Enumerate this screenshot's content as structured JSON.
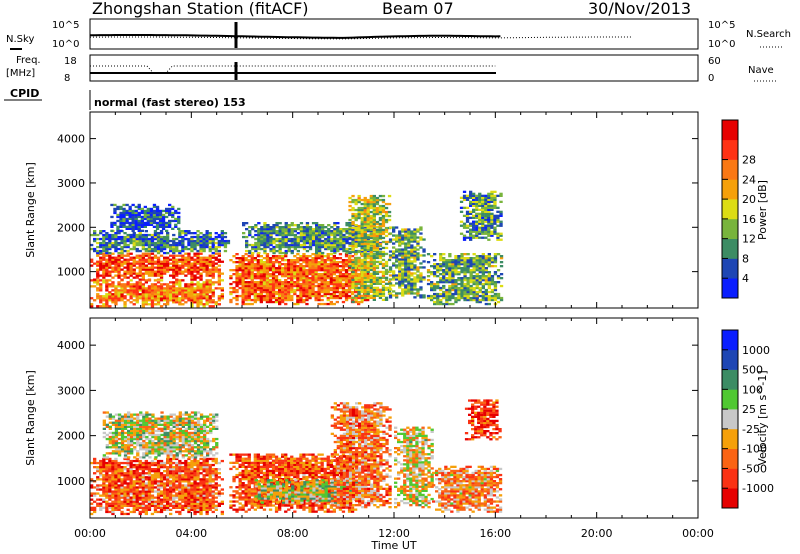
{
  "header": {
    "station": "Zhongshan Station (fitACF)",
    "beam": "Beam 07",
    "date": "30/Nov/2013"
  },
  "params": {
    "nsky_label": "N.Sky",
    "nsky_ticks": [
      "10^5",
      "10^0"
    ],
    "nsearch_label": "N.Search",
    "nsearch_ticks": [
      "10^5",
      "10^0"
    ],
    "freq_label_1": "Freq.",
    "freq_label_2": "[MHz]",
    "freq_ticks": [
      "18",
      "8"
    ],
    "nave_label": "Nave",
    "nave_ticks": [
      "60",
      "0"
    ],
    "cpid_label": "CPID",
    "cpid_text": "normal (fast stereo) 153"
  },
  "colors": {
    "power": [
      "#0a1eff",
      "#1e46b4",
      "#3c8c64",
      "#78b43c",
      "#dcdc14",
      "#f5a00a",
      "#fa7814",
      "#ff3214",
      "#e60000"
    ],
    "velocity": [
      "#e60000",
      "#fa3214",
      "#fa6414",
      "#f5a00a",
      "#c8c8c8",
      "#50c832",
      "#3c8c64",
      "#1e46b4",
      "#0a1eff"
    ]
  },
  "chart_data": [
    {
      "type": "heatmap",
      "name": "power",
      "x_unit": "hours UT",
      "x_range": [
        0,
        24
      ],
      "x_ticks": [
        "00:00",
        "04:00",
        "08:00",
        "12:00",
        "16:00",
        "20:00",
        "00:00"
      ],
      "ylabel": "Slant Range [km]",
      "y_range": [
        180,
        4600
      ],
      "y_ticks": [
        "1000",
        "2000",
        "3000",
        "4000"
      ],
      "colorbar": {
        "label": "Power [dB]",
        "range": [
          0,
          30
        ],
        "ticks": [
          "4",
          "8",
          "12",
          "16",
          "20",
          "24",
          "28"
        ]
      },
      "data_extent_hours": [
        0,
        16.2
      ],
      "regions": [
        {
          "t": [
            0.0,
            5.2
          ],
          "r": [
            200,
            800
          ],
          "level": 0.7
        },
        {
          "t": [
            0.0,
            5.2
          ],
          "r": [
            800,
            1400
          ],
          "level": 0.8
        },
        {
          "t": [
            0.0,
            5.5
          ],
          "r": [
            1400,
            1900
          ],
          "level": 0.25
        },
        {
          "t": [
            0.8,
            3.5
          ],
          "r": [
            1900,
            2500
          ],
          "level": 0.15
        },
        {
          "t": [
            5.5,
            11.0
          ],
          "r": [
            250,
            1400
          ],
          "level": 0.75
        },
        {
          "t": [
            6.0,
            11.5
          ],
          "r": [
            1400,
            2100
          ],
          "level": 0.3
        },
        {
          "t": [
            10.2,
            11.8
          ],
          "r": [
            300,
            2700
          ],
          "level": 0.45
        },
        {
          "t": [
            11.8,
            13.2
          ],
          "r": [
            400,
            2000
          ],
          "level": 0.35
        },
        {
          "t": [
            13.3,
            16.2
          ],
          "r": [
            250,
            1400
          ],
          "level": 0.35
        },
        {
          "t": [
            14.6,
            16.2
          ],
          "r": [
            1700,
            2800
          ],
          "level": 0.3
        }
      ]
    },
    {
      "type": "heatmap",
      "name": "velocity",
      "x_unit": "hours UT",
      "x_range": [
        0,
        24
      ],
      "x_ticks": [
        "00:00",
        "04:00",
        "08:00",
        "12:00",
        "16:00",
        "20:00",
        "00:00"
      ],
      "xlabel": "Time UT",
      "ylabel": "Slant Range [km]",
      "y_range": [
        180,
        4600
      ],
      "y_ticks": [
        "1000",
        "2000",
        "3000",
        "4000"
      ],
      "colorbar": {
        "label": "Velocity [m s^-1]",
        "range": [
          -1250,
          1250
        ],
        "ticks": [
          "1000",
          "500",
          "100",
          "25",
          "-25",
          "-100",
          "-500",
          "-1000"
        ]
      },
      "data_extent_hours": [
        0,
        16.2
      ],
      "regions": [
        {
          "t": [
            0.0,
            5.2
          ],
          "r": [
            250,
            1500
          ],
          "level": 0.25
        },
        {
          "t": [
            0.5,
            5.0
          ],
          "r": [
            1500,
            2500
          ],
          "level": 0.5
        },
        {
          "t": [
            5.5,
            10.5
          ],
          "r": [
            300,
            1600
          ],
          "level": 0.22
        },
        {
          "t": [
            6.5,
            10.8
          ],
          "r": [
            500,
            1000
          ],
          "level": 0.55
        },
        {
          "t": [
            9.5,
            11.8
          ],
          "r": [
            400,
            2700
          ],
          "level": 0.3
        },
        {
          "t": [
            12.0,
            13.5
          ],
          "r": [
            400,
            2200
          ],
          "level": 0.45
        },
        {
          "t": [
            13.5,
            16.2
          ],
          "r": [
            300,
            1300
          ],
          "level": 0.35
        },
        {
          "t": [
            14.8,
            16.2
          ],
          "r": [
            1900,
            2800
          ],
          "level": 0.15
        }
      ]
    }
  ]
}
